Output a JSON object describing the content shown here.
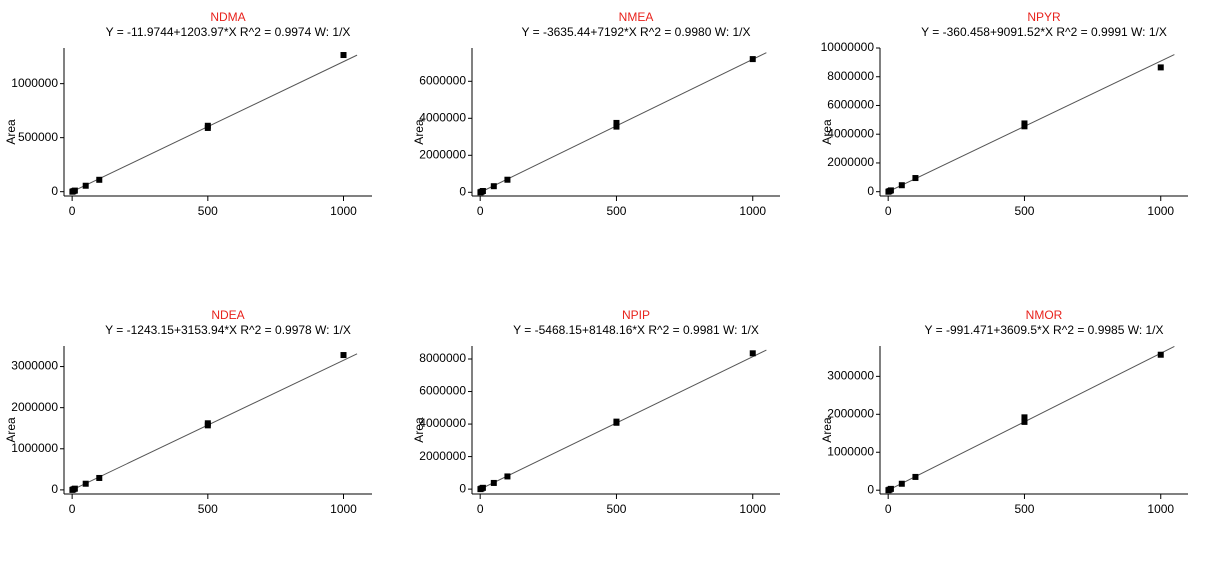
{
  "chart_data": [
    {
      "type": "scatter",
      "title": "NDMA",
      "subtitle": "Y = -11.9744+1203.97*X   R^2 = 0.9974   W: 1/X",
      "y_label": "Area",
      "x": [
        1,
        5,
        10,
        50,
        100,
        500,
        500,
        1000
      ],
      "values": [
        0,
        5000,
        10000,
        55000,
        110000,
        590000,
        610000,
        1265000
      ],
      "fit": {
        "x": [
          0,
          1050
        ],
        "y": [
          -12,
          1264157
        ]
      },
      "xlim": [
        -30,
        1105
      ],
      "ylim": [
        -40000,
        1330000
      ],
      "xticks": [
        0,
        500,
        1000
      ],
      "yticks": [
        0,
        500000,
        1000000
      ]
    },
    {
      "type": "scatter",
      "title": "NMEA",
      "subtitle": "Y = -3635.44+7192*X   R^2 = 0.9980   W: 1/X",
      "y_label": "Area",
      "x": [
        1,
        5,
        10,
        50,
        100,
        500,
        500,
        1000
      ],
      "values": [
        0,
        30000,
        70000,
        330000,
        680000,
        3550000,
        3750000,
        7200000
      ],
      "fit": {
        "x": [
          0,
          1050
        ],
        "y": [
          -3635,
          7547965
        ]
      },
      "xlim": [
        -30,
        1100
      ],
      "ylim": [
        -200000,
        7800000
      ],
      "xticks": [
        0,
        500,
        1000
      ],
      "yticks": [
        0,
        2000000,
        4000000,
        6000000
      ]
    },
    {
      "type": "scatter",
      "title": "NPYR",
      "subtitle": "Y = -360.458+9091.52*X   R^2 = 0.9991   W: 1/X",
      "y_label": "Area",
      "x": [
        1,
        5,
        10,
        50,
        100,
        500,
        500,
        1000
      ],
      "values": [
        0,
        40000,
        90000,
        450000,
        950000,
        4550000,
        4750000,
        8650000
      ],
      "fit": {
        "x": [
          0,
          1050
        ],
        "y": [
          -360,
          9545736
        ]
      },
      "xlim": [
        -30,
        1100
      ],
      "ylim": [
        -300000,
        10000000
      ],
      "xticks": [
        0,
        500,
        1000
      ],
      "yticks": [
        0,
        2000000,
        4000000,
        6000000,
        8000000,
        10000000
      ]
    },
    {
      "type": "scatter",
      "title": "NDEA",
      "subtitle": "Y = -1243.15+3153.94*X   R^2 = 0.9978   W: 1/X",
      "y_label": "Area",
      "x": [
        1,
        5,
        10,
        50,
        100,
        500,
        500,
        1000
      ],
      "values": [
        0,
        15000,
        30000,
        150000,
        290000,
        1570000,
        1620000,
        3280000
      ],
      "fit": {
        "x": [
          0,
          1050
        ],
        "y": [
          -1243,
          3310394
        ]
      },
      "xlim": [
        -30,
        1105
      ],
      "ylim": [
        -100000,
        3500000
      ],
      "xticks": [
        0,
        500,
        1000
      ],
      "yticks": [
        0,
        1000000,
        2000000,
        3000000
      ]
    },
    {
      "type": "scatter",
      "title": "NPIP",
      "subtitle": "Y = -5468.15+8148.16*X   R^2 = 0.9981   W: 1/X",
      "y_label": "Area",
      "x": [
        1,
        5,
        10,
        50,
        100,
        500,
        500,
        1000
      ],
      "values": [
        0,
        40000,
        80000,
        380000,
        780000,
        4080000,
        4150000,
        8350000
      ],
      "fit": {
        "x": [
          0,
          1050
        ],
        "y": [
          -5468,
          8550100
        ]
      },
      "xlim": [
        -30,
        1100
      ],
      "ylim": [
        -300000,
        8800000
      ],
      "xticks": [
        0,
        500,
        1000
      ],
      "yticks": [
        0,
        2000000,
        4000000,
        6000000,
        8000000
      ]
    },
    {
      "type": "scatter",
      "title": "NMOR",
      "subtitle": "Y = -991.471+3609.5*X   R^2 = 0.9985   W: 1/X",
      "y_label": "Area",
      "x": [
        1,
        5,
        10,
        50,
        100,
        500,
        500,
        1000
      ],
      "values": [
        0,
        15000,
        35000,
        170000,
        350000,
        1800000,
        1920000,
        3570000
      ],
      "fit": {
        "x": [
          0,
          1050
        ],
        "y": [
          -991,
          3788984
        ]
      },
      "xlim": [
        -30,
        1100
      ],
      "ylim": [
        -100000,
        3800000
      ],
      "xticks": [
        0,
        500,
        1000
      ],
      "yticks": [
        0,
        1000000,
        2000000,
        3000000
      ]
    }
  ]
}
